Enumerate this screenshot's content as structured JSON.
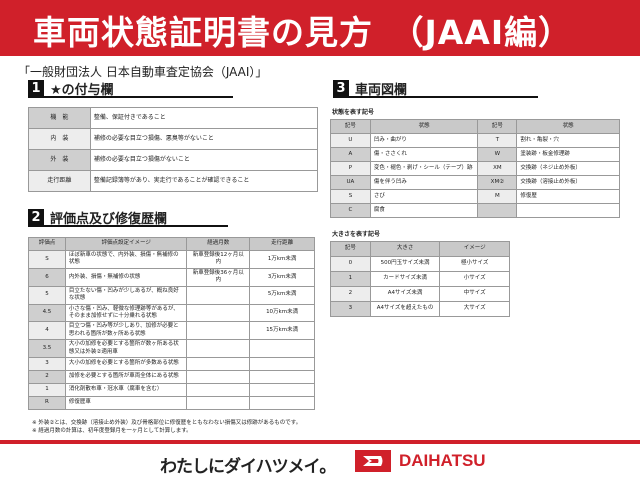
{
  "header": {
    "title": "車両状態証明書の見方　（JAAI編）",
    "org": "「一般財団法人 日本自動車査定協会（JAAI）」"
  },
  "section1": {
    "num": "1",
    "title": "★の付与欄",
    "rows": [
      [
        "機　能",
        "整備、保証付きであること"
      ],
      [
        "内　装",
        "補修の必要な目立つ損傷、悪臭等がないこと"
      ],
      [
        "外　装",
        "補修の必要な目立つ損傷がないこと"
      ],
      [
        "走行距離",
        "整備記録簿等があり、実走行であることが確認できること"
      ]
    ]
  },
  "section2": {
    "num": "2",
    "title": "評価点及び修復歴欄",
    "headers": [
      "評価点",
      "評価点設定イメージ",
      "経過月数",
      "走行距離"
    ],
    "rows": [
      [
        "S",
        "ほぼ新車の状態で、内外装、損傷・無補修の状態",
        "新車登録後12ヶ月以内",
        "1万km未満"
      ],
      [
        "6",
        "内外装、損傷・無補修の状態",
        "新車登録後36ヶ月以内",
        "3万km未満"
      ],
      [
        "5",
        "目立たない傷・凹みが少しあるが、概ね良好な状態",
        "",
        "5万km未満"
      ],
      [
        "4.5",
        "小さな傷・凹み、軽微な修理跡等があるが、そのまま加修せずに十分乗れる状態",
        "",
        "10万km未満"
      ],
      [
        "4",
        "目立つ傷・凹み等が少しあり、加修が必要と思われる箇所が数ヶ所ある状態",
        "",
        "15万km未満"
      ],
      [
        "3.5",
        "大小の加修を必要とする箇所が数ヶ所ある状態又は外装②適用車",
        "",
        ""
      ],
      [
        "3",
        "大小の加修を必要とする箇所が多数ある状態",
        "",
        ""
      ],
      [
        "2",
        "加修を必要とする箇所が車両全体にある状態",
        "",
        ""
      ],
      [
        "1",
        "消化剤散布車・冠水車（腐車を含む）",
        "",
        ""
      ],
      [
        "R",
        "修復歴車",
        "",
        ""
      ]
    ]
  },
  "section3": {
    "num": "3",
    "title": "車両図欄",
    "state_label": "状態を表す記号",
    "state_headers": [
      "記号",
      "状態",
      "記号",
      "状態"
    ],
    "state_rows": [
      [
        "U",
        "凹み・曲がり",
        "T",
        "割れ・亀裂・穴"
      ],
      [
        "A",
        "傷・ささくれ",
        "W",
        "塗装跡・板金修理跡"
      ],
      [
        "P",
        "変色・褪色・剥げ・シール（テープ）跡",
        "XM",
        "交換跡（ネジ止め外板）"
      ],
      [
        "UA",
        "傷を伴う凹み",
        "XM②",
        "交換跡（溶接止め外板）"
      ],
      [
        "S",
        "さび",
        "M",
        "修復歴"
      ],
      [
        "C",
        "腐食",
        "",
        ""
      ]
    ],
    "size_label": "大きさを表す記号",
    "size_headers": [
      "記号",
      "大きさ",
      "イメージ"
    ],
    "size_rows": [
      [
        "0",
        "500円玉サイズ未満",
        "極小サイズ"
      ],
      [
        "1",
        "カードサイズ未満",
        "小サイズ"
      ],
      [
        "2",
        "A4サイズ未満",
        "中サイズ"
      ],
      [
        "3",
        "A4サイズを超えたもの",
        "大サイズ"
      ]
    ]
  },
  "notes": [
    "※ 外装②とは、交換跡（溶接止め外装）及び骨格部位に修復歴をともなわない損傷又は修跡があるものです。",
    "※ 経過月数の計算は、初年度登録月を一ヶ月として計算します。"
  ],
  "footer": {
    "slogan": "わたしにダイハツメイ。",
    "brand": "DAIHATSU"
  },
  "colors": {
    "accent": "#d0202a"
  }
}
